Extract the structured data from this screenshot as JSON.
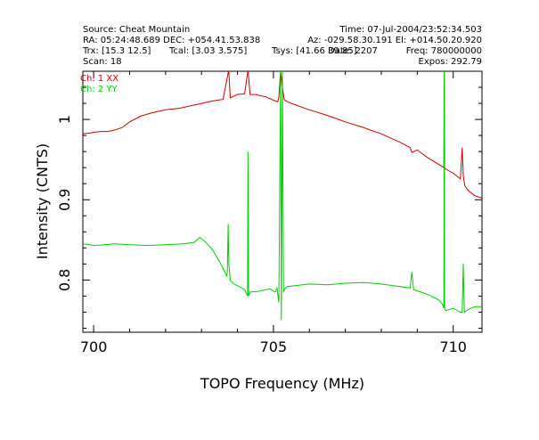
{
  "header": {
    "source": "Source: Cheat Mountain",
    "time": "Time: 07-Jul-2004/23:52:34.503",
    "ra_dec": "RA: 05:24:48.689 DEC: +054.41.53.838",
    "az_el": "Az: -029.58.30.191 El: +014.50.20.920",
    "trx": "Trx: [15.3 12.5]",
    "tcal": "Tcal: [3.03 3.575]",
    "tsys": "Tsys: [41.66 39.85]",
    "date": "Date: 2207",
    "freq": "Freq: 780000000",
    "scan": "Scan: 18",
    "expos": "Expos: 292.79"
  },
  "chart_data": {
    "type": "line",
    "xlabel": "TOPO Frequency (MHz)",
    "ylabel": "Intensity (CNTS)",
    "xlim": [
      699.7,
      710.8
    ],
    "ylim": [
      0.735,
      1.06
    ],
    "x_ticks": [
      700,
      705,
      710
    ],
    "y_ticks": [
      0.8,
      0.9,
      1
    ],
    "x_tick_labels": [
      "700",
      "705",
      "710"
    ],
    "y_tick_labels": [
      "0.8",
      "0.9",
      "1"
    ],
    "series": [
      {
        "name": "Ch: 1 XX",
        "color": "#cc0000",
        "x": [
          699.7,
          699.9,
          700.0,
          700.2,
          700.4,
          700.6,
          700.8,
          701.0,
          701.3,
          701.6,
          702.0,
          702.4,
          702.8,
          703.0,
          703.3,
          703.6,
          703.74,
          703.75,
          703.76,
          703.8,
          703.9,
          704.0,
          704.2,
          704.28,
          704.29,
          704.3,
          704.35,
          704.5,
          704.8,
          705.0,
          705.12,
          705.15,
          705.2,
          705.25,
          705.3,
          705.35,
          705.5,
          706.0,
          706.5,
          707.0,
          707.5,
          708.0,
          708.5,
          708.8,
          708.85,
          709.0,
          709.3,
          709.6,
          709.74,
          709.75,
          709.76,
          709.8,
          710.0,
          710.2,
          710.25,
          710.28,
          710.32,
          710.4,
          710.6,
          710.8
        ],
        "values": [
          0.982,
          0.983,
          0.984,
          0.985,
          0.985,
          0.987,
          0.99,
          0.997,
          1.004,
          1.008,
          1.012,
          1.014,
          1.018,
          1.02,
          1.023,
          1.025,
          1.058,
          1.06,
          1.058,
          1.027,
          1.029,
          1.031,
          1.032,
          1.058,
          1.06,
          1.058,
          1.031,
          1.031,
          1.028,
          1.024,
          1.022,
          1.028,
          1.06,
          1.04,
          1.025,
          1.023,
          1.02,
          1.012,
          1.005,
          0.997,
          0.99,
          0.982,
          0.972,
          0.965,
          0.959,
          0.962,
          0.952,
          0.944,
          0.94,
          1.06,
          0.94,
          0.938,
          0.933,
          0.926,
          0.965,
          0.93,
          0.918,
          0.912,
          0.905,
          0.902
        ]
      },
      {
        "name": "Ch: 2 YY",
        "color": "#00cc00",
        "x": [
          699.7,
          699.9,
          700.0,
          700.3,
          700.6,
          701.0,
          701.5,
          702.0,
          702.5,
          702.8,
          702.95,
          703.1,
          703.3,
          703.5,
          703.65,
          703.7,
          703.72,
          703.74,
          703.76,
          703.8,
          703.9,
          704.0,
          704.2,
          704.28,
          704.29,
          704.31,
          704.35,
          704.6,
          704.9,
          705.05,
          705.1,
          705.15,
          705.2,
          705.22,
          705.25,
          705.28,
          705.33,
          705.4,
          705.6,
          706.0,
          706.5,
          707.0,
          707.5,
          708.0,
          708.5,
          708.8,
          708.85,
          708.9,
          709.1,
          709.4,
          709.6,
          709.7,
          709.74,
          709.75,
          709.76,
          709.8,
          710.0,
          710.2,
          710.25,
          710.28,
          710.31,
          710.4,
          710.6,
          710.8
        ],
        "values": [
          0.845,
          0.844,
          0.843,
          0.844,
          0.845,
          0.844,
          0.843,
          0.844,
          0.845,
          0.847,
          0.853,
          0.848,
          0.838,
          0.823,
          0.81,
          0.805,
          0.81,
          0.87,
          0.82,
          0.8,
          0.795,
          0.793,
          0.788,
          0.78,
          0.96,
          0.78,
          0.785,
          0.786,
          0.789,
          0.785,
          0.79,
          0.772,
          1.06,
          0.75,
          1.06,
          0.785,
          0.79,
          0.792,
          0.793,
          0.795,
          0.794,
          0.796,
          0.797,
          0.795,
          0.792,
          0.79,
          0.81,
          0.788,
          0.785,
          0.78,
          0.775,
          0.77,
          0.765,
          1.06,
          0.765,
          0.762,
          0.765,
          0.76,
          0.76,
          0.82,
          0.76,
          0.763,
          0.767,
          0.767
        ]
      }
    ]
  }
}
